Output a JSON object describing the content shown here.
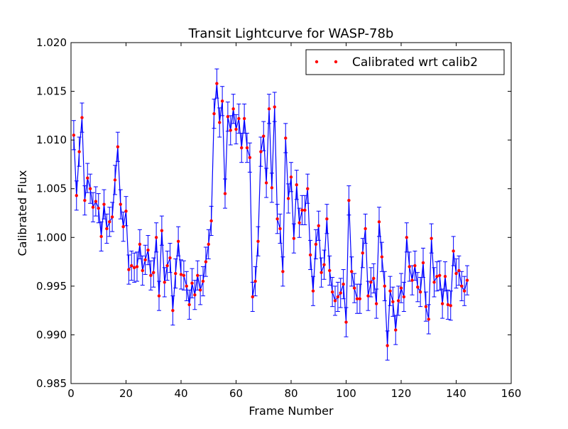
{
  "chart_data": {
    "type": "line",
    "title": "Transit Lightcurve for WASP-78b",
    "xlabel": "Frame Number",
    "ylabel": "Calibrated Flux",
    "xlim": [
      0,
      160
    ],
    "ylim": [
      0.985,
      1.02
    ],
    "xticks": [
      "0",
      "20",
      "40",
      "60",
      "80",
      "100",
      "120",
      "140",
      "160"
    ],
    "yticks": [
      "0.985",
      "0.990",
      "0.995",
      "1.000",
      "1.005",
      "1.010",
      "1.015",
      "1.020"
    ],
    "grid": false,
    "legend": {
      "position": "top-right",
      "entries": [
        "Calibrated wrt calib2"
      ]
    },
    "colors": {
      "line": "#0000ff",
      "marker": "#ff0000"
    },
    "series": [
      {
        "name": "Calibrated wrt calib2",
        "x": [
          1,
          2,
          3,
          4,
          5,
          6,
          7,
          8,
          9,
          10,
          11,
          12,
          13,
          14,
          15,
          16,
          17,
          18,
          19,
          20,
          21,
          22,
          23,
          24,
          25,
          26,
          27,
          28,
          29,
          30,
          31,
          32,
          33,
          34,
          35,
          36,
          37,
          38,
          39,
          40,
          41,
          42,
          43,
          44,
          45,
          46,
          47,
          48,
          49,
          50,
          51,
          52,
          53,
          54,
          55,
          56,
          57,
          58,
          59,
          60,
          61,
          62,
          63,
          64,
          65,
          66,
          67,
          68,
          69,
          70,
          71,
          72,
          73,
          74,
          75,
          76,
          77,
          78,
          79,
          80,
          81,
          82,
          83,
          84,
          85,
          86,
          87,
          88,
          89,
          90,
          91,
          92,
          93,
          94,
          95,
          96,
          97,
          98,
          99,
          100,
          101,
          102,
          103,
          104,
          105,
          106,
          107,
          108,
          109,
          110,
          111,
          112,
          113,
          114,
          115,
          116,
          117,
          118,
          119,
          120,
          121,
          122,
          123,
          124,
          125,
          126,
          127,
          128,
          129,
          130,
          131,
          132,
          133,
          134,
          135,
          136,
          137,
          138,
          139,
          140,
          141,
          142,
          143,
          144
        ],
        "y": [
          1.0105,
          1.0043,
          1.0088,
          1.0123,
          1.0038,
          1.0061,
          1.005,
          1.0031,
          1.0037,
          1.003,
          1.0001,
          1.0034,
          1.0009,
          1.0016,
          1.0021,
          1.0059,
          1.0093,
          1.0034,
          1.0011,
          1.0027,
          0.9967,
          0.9971,
          0.9969,
          0.997,
          0.9993,
          0.9966,
          0.9977,
          0.9987,
          0.9961,
          0.9964,
          1.0,
          0.994,
          1.0007,
          0.9954,
          0.9971,
          0.9979,
          0.9925,
          0.9963,
          0.9996,
          0.9962,
          0.9961,
          0.995,
          0.9931,
          0.9953,
          0.9941,
          0.9961,
          0.9946,
          0.9955,
          0.9975,
          0.9993,
          1.0017,
          1.0127,
          1.0158,
          1.0118,
          1.014,
          1.0045,
          1.0124,
          1.011,
          1.0132,
          1.0111,
          1.0122,
          1.0092,
          1.0122,
          1.0092,
          1.0082,
          0.9939,
          0.9955,
          0.9996,
          1.0088,
          1.0104,
          1.0056,
          1.0132,
          1.0051,
          1.0134,
          1.0019,
          1.0009,
          0.9965,
          1.0102,
          1.004,
          1.0062,
          0.9999,
          1.0054,
          1.0015,
          1.0028,
          1.0028,
          1.005,
          0.9982,
          0.9945,
          0.9993,
          1.0012,
          0.9964,
          0.9972,
          1.0019,
          0.9966,
          0.9944,
          0.9935,
          0.9939,
          0.9943,
          0.9952,
          0.9913,
          1.0038,
          0.9965,
          0.9948,
          0.9937,
          0.9937,
          0.9984,
          1.0009,
          0.994,
          0.9954,
          0.9958,
          0.9932,
          1.0016,
          0.998,
          0.995,
          0.9889,
          0.9945,
          0.9934,
          0.9905,
          0.9935,
          0.9948,
          0.9939,
          1.0,
          0.997,
          0.9956,
          0.9971,
          0.9949,
          0.9944,
          0.9974,
          0.9929,
          0.9916,
          0.9999,
          0.9954,
          0.996,
          0.9961,
          0.9932,
          0.996,
          0.9931,
          0.993,
          0.9986,
          0.9963,
          0.9966,
          0.995,
          0.9945,
          0.9956
        ],
        "yerr": 0.0015
      }
    ]
  }
}
